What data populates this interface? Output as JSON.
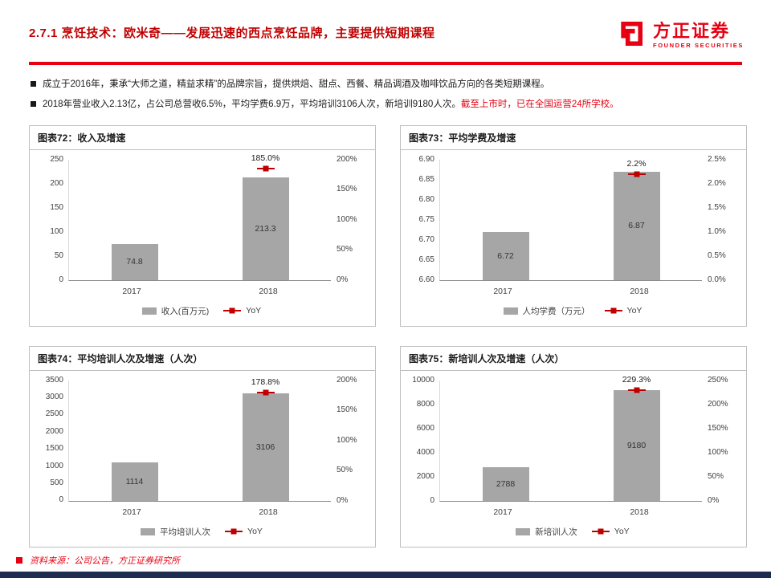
{
  "header": {
    "title": "2.7.1 烹饪技术：欧米奇——发展迅速的西点烹饪品牌，主要提供短期课程",
    "logo_cn": "方正证券",
    "logo_en": "FOUNDER SECURITIES"
  },
  "bullets": [
    {
      "part1": "成立于2016年，秉承“大师之道，精益求精”的品牌宗旨，提供烘焙、甜点、西餐、精品调酒及咖啡饮品方向的各类短期课程。",
      "part2": ""
    },
    {
      "part1": "2018年营业收入2.13亿，占公司总营收6.5%，平均学费6.9万，平均培训3106人次，新培训9180人次。",
      "part2": "截至上市时，已在全国运营24所学校。"
    }
  ],
  "colors": {
    "brand_red": "#e60012",
    "title_red": "#c00000",
    "bar_gray": "#a6a6a6",
    "yoy_red": "#c00000",
    "bottom_bar_navy": "#1e2c4f"
  },
  "chart_data": [
    {
      "type": "bar",
      "title": "图表72：收入及增速",
      "categories": [
        "2017",
        "2018"
      ],
      "series": [
        {
          "name": "收入(百万元)",
          "type": "bar",
          "values": [
            74.8,
            213.3
          ],
          "labels": [
            "74.8",
            "213.3"
          ]
        },
        {
          "name": "YoY",
          "type": "point",
          "values": [
            null,
            185.0
          ],
          "labels": [
            null,
            "185.0%"
          ]
        }
      ],
      "left_axis": {
        "min": 0,
        "max": 250,
        "ticks": [
          "250",
          "200",
          "150",
          "100",
          "50",
          "0"
        ]
      },
      "right_axis": {
        "min": 0,
        "max": 200,
        "ticks": [
          "200%",
          "150%",
          "100%",
          "50%",
          "0%"
        ]
      },
      "legend_position": "bottom",
      "grid": false
    },
    {
      "type": "bar",
      "title": "图表73：平均学费及增速",
      "categories": [
        "2017",
        "2018"
      ],
      "series": [
        {
          "name": "人均学费（万元）",
          "type": "bar",
          "values": [
            6.72,
            6.87
          ],
          "labels": [
            "6.72",
            "6.87"
          ]
        },
        {
          "name": "YoY",
          "type": "point",
          "values": [
            null,
            2.2
          ],
          "labels": [
            null,
            "2.2%"
          ]
        }
      ],
      "left_axis": {
        "min": 6.6,
        "max": 6.9,
        "ticks": [
          "6.90",
          "6.85",
          "6.80",
          "6.75",
          "6.70",
          "6.65",
          "6.60"
        ]
      },
      "right_axis": {
        "min": 0,
        "max": 2.5,
        "ticks": [
          "2.5%",
          "2.0%",
          "1.5%",
          "1.0%",
          "0.5%",
          "0.0%"
        ]
      },
      "legend_position": "bottom",
      "grid": false
    },
    {
      "type": "bar",
      "title": "图表74：平均培训人次及增速（人次）",
      "categories": [
        "2017",
        "2018"
      ],
      "series": [
        {
          "name": "平均培训人次",
          "type": "bar",
          "values": [
            1114,
            3106
          ],
          "labels": [
            "1114",
            "3106"
          ]
        },
        {
          "name": "YoY",
          "type": "point",
          "values": [
            null,
            178.8
          ],
          "labels": [
            null,
            "178.8%"
          ]
        }
      ],
      "left_axis": {
        "min": 0,
        "max": 3500,
        "ticks": [
          "3500",
          "3000",
          "2500",
          "2000",
          "1500",
          "1000",
          "500",
          "0"
        ]
      },
      "right_axis": {
        "min": 0,
        "max": 200,
        "ticks": [
          "200%",
          "150%",
          "100%",
          "50%",
          "0%"
        ]
      },
      "legend_position": "bottom",
      "grid": false
    },
    {
      "type": "bar",
      "title": "图表75：新培训人次及增速（人次）",
      "categories": [
        "2017",
        "2018"
      ],
      "series": [
        {
          "name": "新培训人次",
          "type": "bar",
          "values": [
            2788,
            9180
          ],
          "labels": [
            "2788",
            "9180"
          ]
        },
        {
          "name": "YoY",
          "type": "point",
          "values": [
            null,
            229.3
          ],
          "labels": [
            null,
            "229.3%"
          ]
        }
      ],
      "left_axis": {
        "min": 0,
        "max": 10000,
        "ticks": [
          "10000",
          "8000",
          "6000",
          "4000",
          "2000",
          "0"
        ]
      },
      "right_axis": {
        "min": 0,
        "max": 250,
        "ticks": [
          "250%",
          "200%",
          "150%",
          "100%",
          "50%",
          "0%"
        ]
      },
      "legend_position": "bottom",
      "grid": false
    }
  ],
  "footer": {
    "source": "资料来源：公司公告，方正证券研究所"
  }
}
